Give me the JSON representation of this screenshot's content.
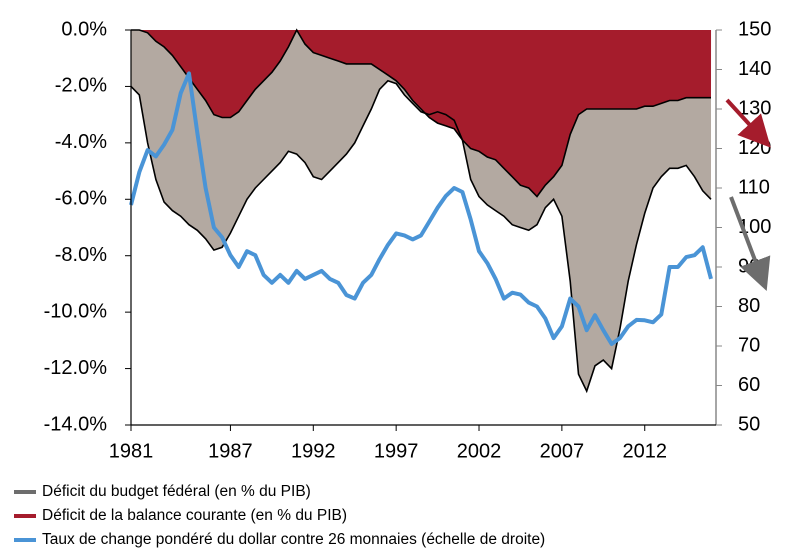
{
  "chart_data": {
    "type": "line",
    "x": [
      1981,
      1981.5,
      1982,
      1982.5,
      1983,
      1983.5,
      1984,
      1984.5,
      1985,
      1985.5,
      1986,
      1986.5,
      1987,
      1987.5,
      1988,
      1988.5,
      1989,
      1989.5,
      1990,
      1990.5,
      1991,
      1991.5,
      1992,
      1992.5,
      1993,
      1993.5,
      1994,
      1994.5,
      1995,
      1995.5,
      1996,
      1996.5,
      1997,
      1997.5,
      1998,
      1998.5,
      1999,
      1999.5,
      2000,
      2000.5,
      2001,
      2001.5,
      2002,
      2002.5,
      2003,
      2003.5,
      2004,
      2004.5,
      2005,
      2005.5,
      2006,
      2006.5,
      2007,
      2007.5,
      2008,
      2008.5,
      2009,
      2009.5,
      2010,
      2010.5,
      2011,
      2011.5,
      2012,
      2012.5,
      2013,
      2013.5,
      2014,
      2014.5,
      2015,
      2015.5,
      2016
    ],
    "series": [
      {
        "name": "Déficit du budget fédéral (en % du PIB)",
        "kind": "area",
        "color": "#6d6d6d",
        "fill": "#b3a9a1",
        "values": [
          -2.0,
          -2.3,
          -4.0,
          -5.3,
          -6.1,
          -6.4,
          -6.6,
          -6.9,
          -7.1,
          -7.4,
          -7.8,
          -7.7,
          -7.2,
          -6.6,
          -6.0,
          -5.6,
          -5.3,
          -5.0,
          -4.7,
          -4.3,
          -4.4,
          -4.7,
          -5.2,
          -5.3,
          -5.0,
          -4.7,
          -4.4,
          -4.0,
          -3.4,
          -2.8,
          -2.1,
          -1.8,
          -1.9,
          -2.3,
          -2.6,
          -2.9,
          -3.0,
          -2.9,
          -3.0,
          -3.2,
          -3.9,
          -5.3,
          -5.9,
          -6.2,
          -6.4,
          -6.6,
          -6.9,
          -7.0,
          -7.1,
          -6.9,
          -6.3,
          -6.0,
          -6.6,
          -8.9,
          -12.2,
          -12.8,
          -11.9,
          -11.7,
          -12.0,
          -10.6,
          -8.9,
          -7.6,
          -6.5,
          -5.6,
          -5.2,
          -4.9,
          -4.9,
          -4.8,
          -5.2,
          -5.7,
          -6.0
        ]
      },
      {
        "name": "Déficit de la balance courante (en % du PIB)",
        "kind": "area",
        "color": "#a51c2c",
        "fill": "#a51c2c",
        "values": [
          0,
          0,
          -0.1,
          -0.4,
          -0.6,
          -0.9,
          -1.3,
          -1.7,
          -2.1,
          -2.5,
          -3.0,
          -3.1,
          -3.1,
          -2.9,
          -2.5,
          -2.1,
          -1.8,
          -1.5,
          -1.1,
          -0.6,
          0,
          -0.5,
          -0.8,
          -0.9,
          -1.0,
          -1.1,
          -1.2,
          -1.2,
          -1.2,
          -1.2,
          -1.4,
          -1.6,
          -1.8,
          -2.1,
          -2.5,
          -2.8,
          -3.1,
          -3.3,
          -3.4,
          -3.5,
          -3.9,
          -4.2,
          -4.3,
          -4.5,
          -4.6,
          -4.9,
          -5.2,
          -5.5,
          -5.6,
          -5.9,
          -5.5,
          -5.2,
          -4.8,
          -3.7,
          -3.0,
          -2.8,
          -2.8,
          -2.8,
          -2.8,
          -2.8,
          -2.8,
          -2.8,
          -2.7,
          -2.7,
          -2.6,
          -2.5,
          -2.5,
          -2.4,
          -2.4,
          -2.4,
          -2.4
        ]
      },
      {
        "name": "Taux de change pondéré du dollar contre 26 monnaies (échelle de droite)",
        "kind": "line",
        "axis": "y2",
        "color": "#4a94d6",
        "values": [
          105.7,
          114,
          119.6,
          118,
          121,
          124.7,
          134,
          139,
          124,
          110,
          100,
          97.5,
          93,
          90,
          94,
          93,
          88,
          86,
          88,
          86,
          89,
          87,
          88,
          89,
          87,
          86,
          82.9,
          82,
          86,
          88,
          92,
          95.6,
          98.5,
          98,
          97,
          98,
          101.5,
          105,
          108,
          110,
          109,
          102,
          94,
          91,
          87,
          82,
          83.5,
          83,
          81,
          80,
          77,
          72,
          75,
          82,
          80,
          74,
          77.8,
          74,
          70.5,
          72,
          75,
          76.6,
          76.5,
          76,
          78,
          90,
          90,
          92.5,
          93,
          95,
          87
        ]
      }
    ],
    "xlim": [
      1981,
      2016.3
    ],
    "xticks": [
      1981,
      1987,
      1992,
      1997,
      2002,
      2007,
      2012
    ],
    "ylim": [
      -14,
      0
    ],
    "yticks": [
      {
        "value": 0,
        "label": "0.0%"
      },
      {
        "value": -2,
        "label": "-2.0%"
      },
      {
        "value": -4,
        "label": "-4.0%"
      },
      {
        "value": -6,
        "label": "-6.0%"
      },
      {
        "value": -8,
        "label": "-8.0%"
      },
      {
        "value": -10,
        "label": "-10.0%"
      },
      {
        "value": -12,
        "label": "-12.0%"
      },
      {
        "value": -14,
        "label": "-14.0%"
      }
    ],
    "y2lim": [
      50,
      150
    ],
    "y2ticks": [
      50,
      60,
      70,
      80,
      90,
      100,
      110,
      120,
      130,
      140,
      150
    ]
  }
}
